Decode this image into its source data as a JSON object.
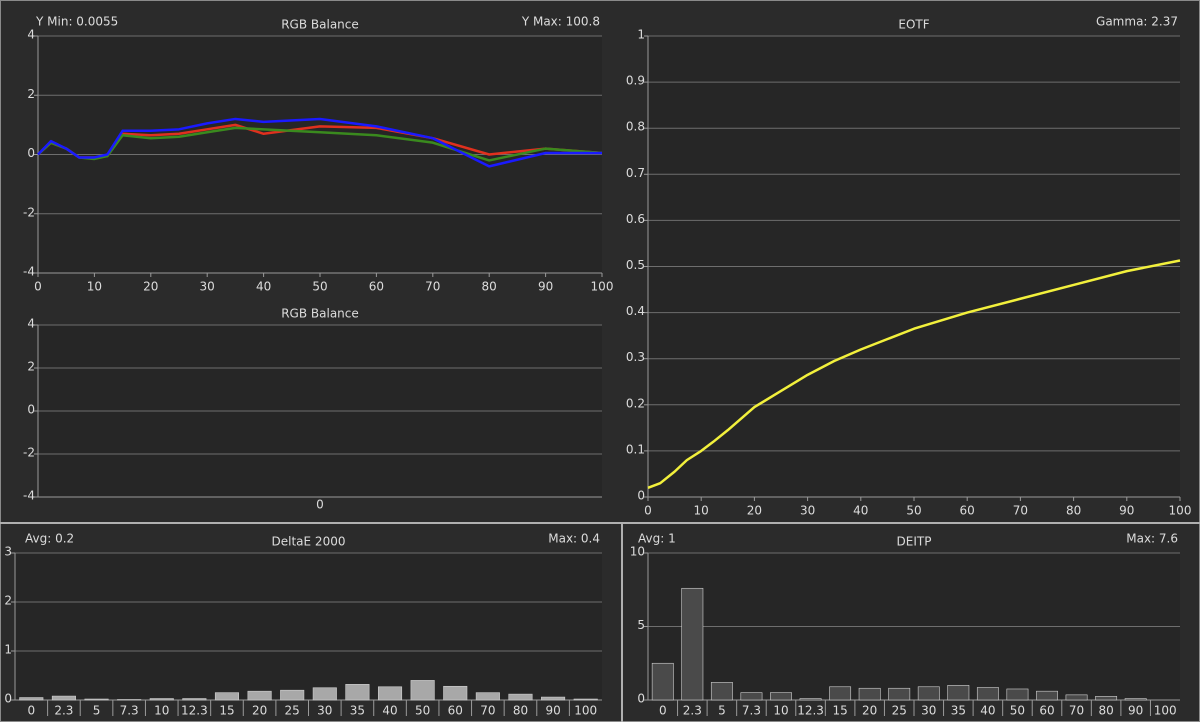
{
  "chart_data": [
    {
      "type": "line",
      "title": "RGB Balance",
      "stats_left": "Y Min: 0.0055",
      "stats_right": "Y Max: 100.8",
      "x": [
        0,
        2.3,
        5,
        7.3,
        10,
        12.3,
        15,
        20,
        25,
        30,
        35,
        40,
        50,
        60,
        70,
        80,
        90,
        100
      ],
      "xlim": [
        0,
        100
      ],
      "xticks": [
        0,
        10,
        20,
        30,
        40,
        50,
        60,
        70,
        80,
        90,
        100
      ],
      "ylim": [
        -4,
        4
      ],
      "yticks": [
        -4,
        -2,
        0,
        2,
        4
      ],
      "grid": true,
      "series": [
        {
          "color": "#e0301e",
          "values": [
            0,
            0.4,
            0.2,
            -0.1,
            -0.1,
            -0.05,
            0.7,
            0.65,
            0.7,
            0.85,
            1.0,
            0.7,
            0.95,
            0.9,
            0.55,
            0.0,
            0.2,
            0.05
          ]
        },
        {
          "color": "#3a8a1e",
          "values": [
            0,
            0.4,
            0.2,
            -0.1,
            -0.15,
            -0.05,
            0.65,
            0.55,
            0.6,
            0.75,
            0.9,
            0.85,
            0.75,
            0.65,
            0.4,
            -0.2,
            0.2,
            0.05
          ]
        },
        {
          "color": "#1a1aff",
          "values": [
            0,
            0.45,
            0.2,
            -0.1,
            -0.1,
            0.0,
            0.8,
            0.8,
            0.85,
            1.05,
            1.2,
            1.1,
            1.2,
            0.95,
            0.55,
            -0.4,
            0.05,
            0.05
          ]
        }
      ]
    },
    {
      "type": "bar",
      "title": "RGB Balance",
      "categories": [
        "0"
      ],
      "ylim": [
        -4,
        4
      ],
      "yticks": [
        -4,
        -2,
        0,
        2,
        4
      ],
      "grid": true,
      "series": [
        {
          "color": "#000000",
          "values": [
            0
          ]
        },
        {
          "color": "#111111",
          "values": [
            0
          ]
        },
        {
          "color": "#1a1aff",
          "values": [
            0
          ]
        }
      ]
    },
    {
      "type": "line",
      "title": "EOTF",
      "stats_right": "Gamma: 2.37",
      "x": [
        0,
        2.3,
        5,
        7.3,
        10,
        12.3,
        15,
        20,
        25,
        30,
        35,
        40,
        50,
        60,
        70,
        80,
        90,
        100
      ],
      "xlim": [
        0,
        100
      ],
      "xticks": [
        0,
        10,
        20,
        30,
        40,
        50,
        60,
        70,
        80,
        90,
        100
      ],
      "ylim": [
        0,
        1
      ],
      "yticks": [
        0,
        0.1,
        0.2,
        0.3,
        0.4,
        0.5,
        0.6,
        0.7,
        0.8,
        0.9,
        1
      ],
      "grid": true,
      "series": [
        {
          "color": "#f2f03c",
          "values": [
            0.02,
            0.03,
            0.055,
            0.08,
            0.1,
            0.12,
            0.145,
            0.195,
            0.23,
            0.265,
            0.295,
            0.32,
            0.365,
            0.4,
            0.43,
            0.46,
            0.49,
            0.513
          ]
        }
      ]
    },
    {
      "type": "bar",
      "title": "DeltaE 2000",
      "stats_left": "Avg: 0.2",
      "stats_right": "Max: 0.4",
      "categories": [
        "0",
        "2.3",
        "5",
        "7.3",
        "10",
        "12.3",
        "15",
        "20",
        "25",
        "30",
        "35",
        "40",
        "50",
        "60",
        "70",
        "80",
        "90",
        "100"
      ],
      "ylim": [
        0,
        3
      ],
      "yticks": [
        0,
        1,
        2,
        3
      ],
      "grid": true,
      "series": [
        {
          "color": "#a8a8a8",
          "values": [
            0.05,
            0.08,
            0.02,
            0.01,
            0.03,
            0.03,
            0.15,
            0.18,
            0.2,
            0.25,
            0.32,
            0.27,
            0.4,
            0.28,
            0.15,
            0.12,
            0.06,
            0.02
          ]
        }
      ]
    },
    {
      "type": "bar",
      "title": "DEITP",
      "stats_left": "Avg: 1",
      "stats_right": "Max: 7.6",
      "categories": [
        "0",
        "2.3",
        "5",
        "7.3",
        "10",
        "12.3",
        "15",
        "20",
        "25",
        "30",
        "35",
        "40",
        "50",
        "60",
        "70",
        "80",
        "90",
        "100"
      ],
      "ylim": [
        0,
        10
      ],
      "yticks": [
        0,
        5,
        10
      ],
      "grid": true,
      "series": [
        {
          "color": "#4a4a4a",
          "values": [
            2.5,
            7.6,
            1.2,
            0.5,
            0.5,
            0.1,
            0.9,
            0.8,
            0.8,
            0.9,
            1.0,
            0.85,
            0.75,
            0.6,
            0.35,
            0.25,
            0.1,
            0.0
          ]
        }
      ]
    }
  ]
}
